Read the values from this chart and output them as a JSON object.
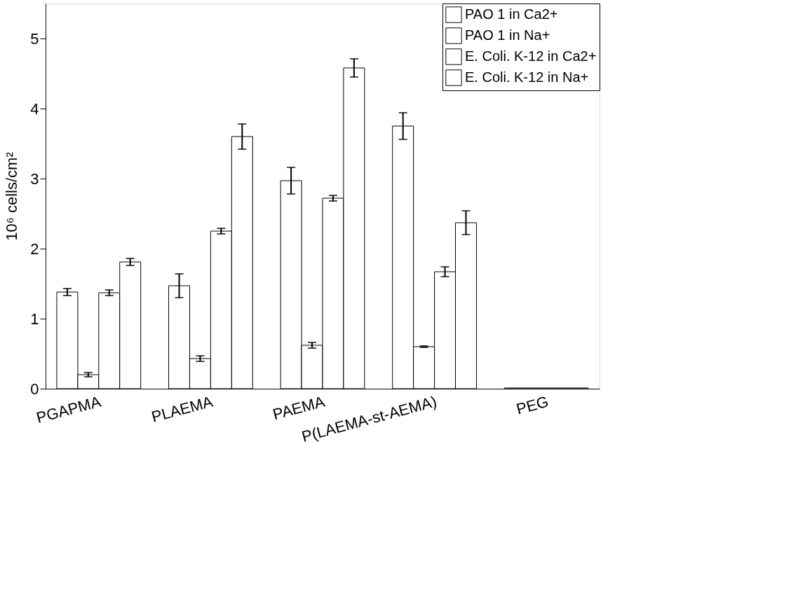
{
  "chart_data": {
    "type": "bar",
    "ylabel": "10⁶ cells/cm²",
    "categories": [
      "PGAPMA",
      "PLAEMA",
      "PAEMA",
      "P(LAEMA-st-AEMA)",
      "PEG"
    ],
    "series": [
      {
        "name": "PAO 1 in Ca2+",
        "color": "#ffffff",
        "values": [
          1.38,
          1.47,
          2.97,
          3.75,
          0.01
        ],
        "errors": [
          0.05,
          0.17,
          0.19,
          0.19,
          null
        ]
      },
      {
        "name": "PAO 1 in Na+",
        "color": "#ffffff",
        "values": [
          0.2,
          0.43,
          0.62,
          0.6,
          0.01
        ],
        "errors": [
          0.03,
          0.04,
          0.04,
          0.01,
          null
        ]
      },
      {
        "name": "E. Coli. K-12 in Ca2+",
        "color": "#ffffff",
        "values": [
          1.37,
          2.25,
          2.72,
          1.67,
          0.01
        ],
        "errors": [
          0.04,
          0.04,
          0.04,
          0.07,
          null
        ]
      },
      {
        "name": "E. Coli. K-12 in Na+",
        "color": "#ffffff",
        "values": [
          1.81,
          3.6,
          4.58,
          2.37,
          0.01
        ],
        "errors": [
          0.05,
          0.18,
          0.13,
          0.17,
          null
        ]
      }
    ],
    "ylim": [
      0,
      5.5
    ],
    "yticks": [
      0,
      1,
      2,
      3,
      4,
      5
    ],
    "legend": "top right",
    "grid": false
  }
}
